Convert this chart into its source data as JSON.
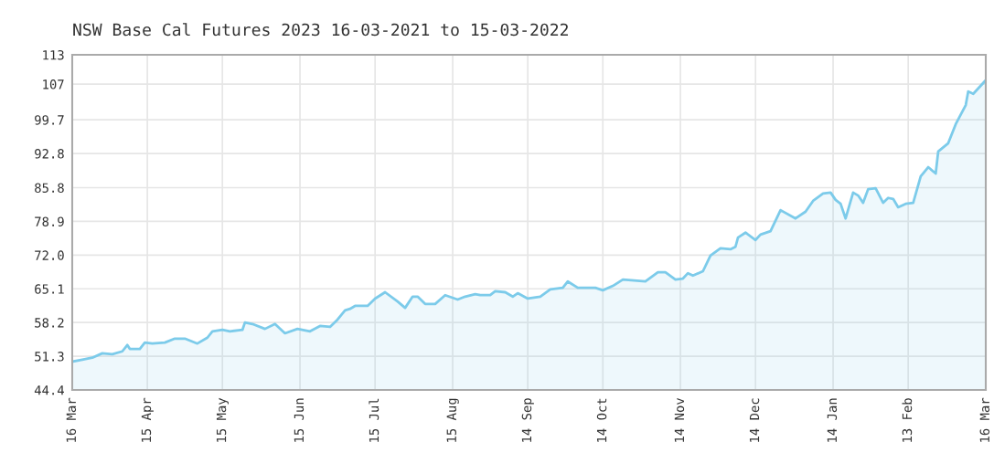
{
  "chart_data": {
    "type": "area",
    "title": "NSW Base Cal Futures 2023 16-03-2021 to 15-03-2022",
    "series": [
      {
        "color": "#7ccbea",
        "x": [
          "2021-03-16",
          "2021-03-20",
          "2021-03-24",
          "2021-03-28",
          "2021-04-01",
          "2021-04-05",
          "2021-04-07",
          "2021-04-08",
          "2021-04-12",
          "2021-04-14",
          "2021-04-17",
          "2021-04-22",
          "2021-04-26",
          "2021-04-30",
          "2021-05-05",
          "2021-05-09",
          "2021-05-11",
          "2021-05-15",
          "2021-05-18",
          "2021-05-23",
          "2021-05-24",
          "2021-05-27",
          "2021-06-01",
          "2021-06-05",
          "2021-06-09",
          "2021-06-14",
          "2021-06-19",
          "2021-06-23",
          "2021-06-27",
          "2021-06-30",
          "2021-07-03",
          "2021-07-05",
          "2021-07-07",
          "2021-07-12",
          "2021-07-15",
          "2021-07-19",
          "2021-07-24",
          "2021-07-27",
          "2021-07-30",
          "2021-08-01",
          "2021-08-04",
          "2021-08-08",
          "2021-08-12",
          "2021-08-17",
          "2021-08-20",
          "2021-08-24",
          "2021-08-26",
          "2021-08-30",
          "2021-09-01",
          "2021-09-05",
          "2021-09-08",
          "2021-09-10",
          "2021-09-14",
          "2021-09-19",
          "2021-09-23",
          "2021-09-28",
          "2021-09-30",
          "2021-10-04",
          "2021-10-11",
          "2021-10-14",
          "2021-10-18",
          "2021-10-22",
          "2021-10-31",
          "2021-11-05",
          "2021-11-08",
          "2021-11-12",
          "2021-11-15",
          "2021-11-17",
          "2021-11-19",
          "2021-11-23",
          "2021-11-26",
          "2021-11-30",
          "2021-12-04",
          "2021-12-06",
          "2021-12-07",
          "2021-12-10",
          "2021-12-14",
          "2021-12-16",
          "2021-12-20",
          "2021-12-24",
          "2021-12-30",
          "2022-01-03",
          "2022-01-06",
          "2022-01-10",
          "2022-01-13",
          "2022-01-15",
          "2022-01-17",
          "2022-01-19",
          "2022-01-22",
          "2022-01-24",
          "2022-01-26",
          "2022-01-28",
          "2022-01-31",
          "2022-02-03",
          "2022-02-05",
          "2022-02-07",
          "2022-02-09",
          "2022-02-12",
          "2022-02-15",
          "2022-02-18",
          "2022-02-21",
          "2022-02-24",
          "2022-02-25",
          "2022-03-01",
          "2022-03-04",
          "2022-03-08",
          "2022-03-09",
          "2022-03-11",
          "2022-03-16"
        ],
        "values": [
          50.2,
          50.6,
          51.0,
          51.9,
          51.7,
          52.3,
          53.6,
          52.8,
          52.8,
          54.1,
          53.9,
          54.1,
          54.9,
          54.9,
          53.9,
          55.1,
          56.4,
          56.7,
          56.4,
          56.7,
          58.2,
          57.9,
          56.9,
          57.9,
          56.0,
          56.9,
          56.4,
          57.5,
          57.3,
          58.8,
          60.7,
          61.0,
          61.6,
          61.6,
          63.1,
          64.4,
          62.5,
          61.2,
          63.5,
          63.5,
          62.0,
          62.0,
          63.8,
          62.9,
          63.5,
          64.0,
          63.8,
          63.8,
          64.6,
          64.4,
          63.5,
          64.2,
          63.1,
          63.5,
          65.0,
          65.3,
          66.6,
          65.3,
          65.3,
          64.8,
          65.7,
          67.0,
          66.6,
          68.5,
          68.5,
          67.0,
          67.2,
          68.3,
          67.8,
          68.7,
          71.9,
          73.4,
          73.2,
          73.7,
          75.6,
          76.6,
          75.1,
          76.2,
          76.9,
          81.2,
          79.5,
          80.9,
          83.1,
          84.6,
          84.8,
          83.3,
          82.5,
          79.5,
          84.8,
          84.2,
          82.7,
          85.5,
          85.7,
          82.7,
          83.7,
          83.5,
          81.8,
          82.5,
          82.7,
          88.1,
          90.0,
          88.7,
          93.2,
          94.9,
          98.8,
          102.7,
          105.5,
          105.0,
          107.8
        ]
      }
    ],
    "xlim": [
      "2021-03-16",
      "2022-03-16"
    ],
    "xticks": [
      {
        "value": "2021-03-16",
        "label": "16 Mar"
      },
      {
        "value": "2021-04-15",
        "label": "15 Apr"
      },
      {
        "value": "2021-05-15",
        "label": "15 May"
      },
      {
        "value": "2021-06-15",
        "label": "15 Jun"
      },
      {
        "value": "2021-07-15",
        "label": "15 Jul"
      },
      {
        "value": "2021-08-15",
        "label": "15 Aug"
      },
      {
        "value": "2021-09-14",
        "label": "14 Sep"
      },
      {
        "value": "2021-10-14",
        "label": "14 Oct"
      },
      {
        "value": "2021-11-14",
        "label": "14 Nov"
      },
      {
        "value": "2021-12-14",
        "label": "14 Dec"
      },
      {
        "value": "2022-01-14",
        "label": "14 Jan"
      },
      {
        "value": "2022-02-13",
        "label": "13 Feb"
      },
      {
        "value": "2022-03-16",
        "label": "16 Mar"
      }
    ],
    "ylim": [
      44.4,
      113
    ],
    "yticks": [
      44.4,
      51.3,
      58.2,
      65.1,
      {
        "value": 72,
        "label": "72.0"
      },
      78.9,
      85.8,
      92.8,
      99.7,
      107,
      113
    ],
    "grid": true
  }
}
